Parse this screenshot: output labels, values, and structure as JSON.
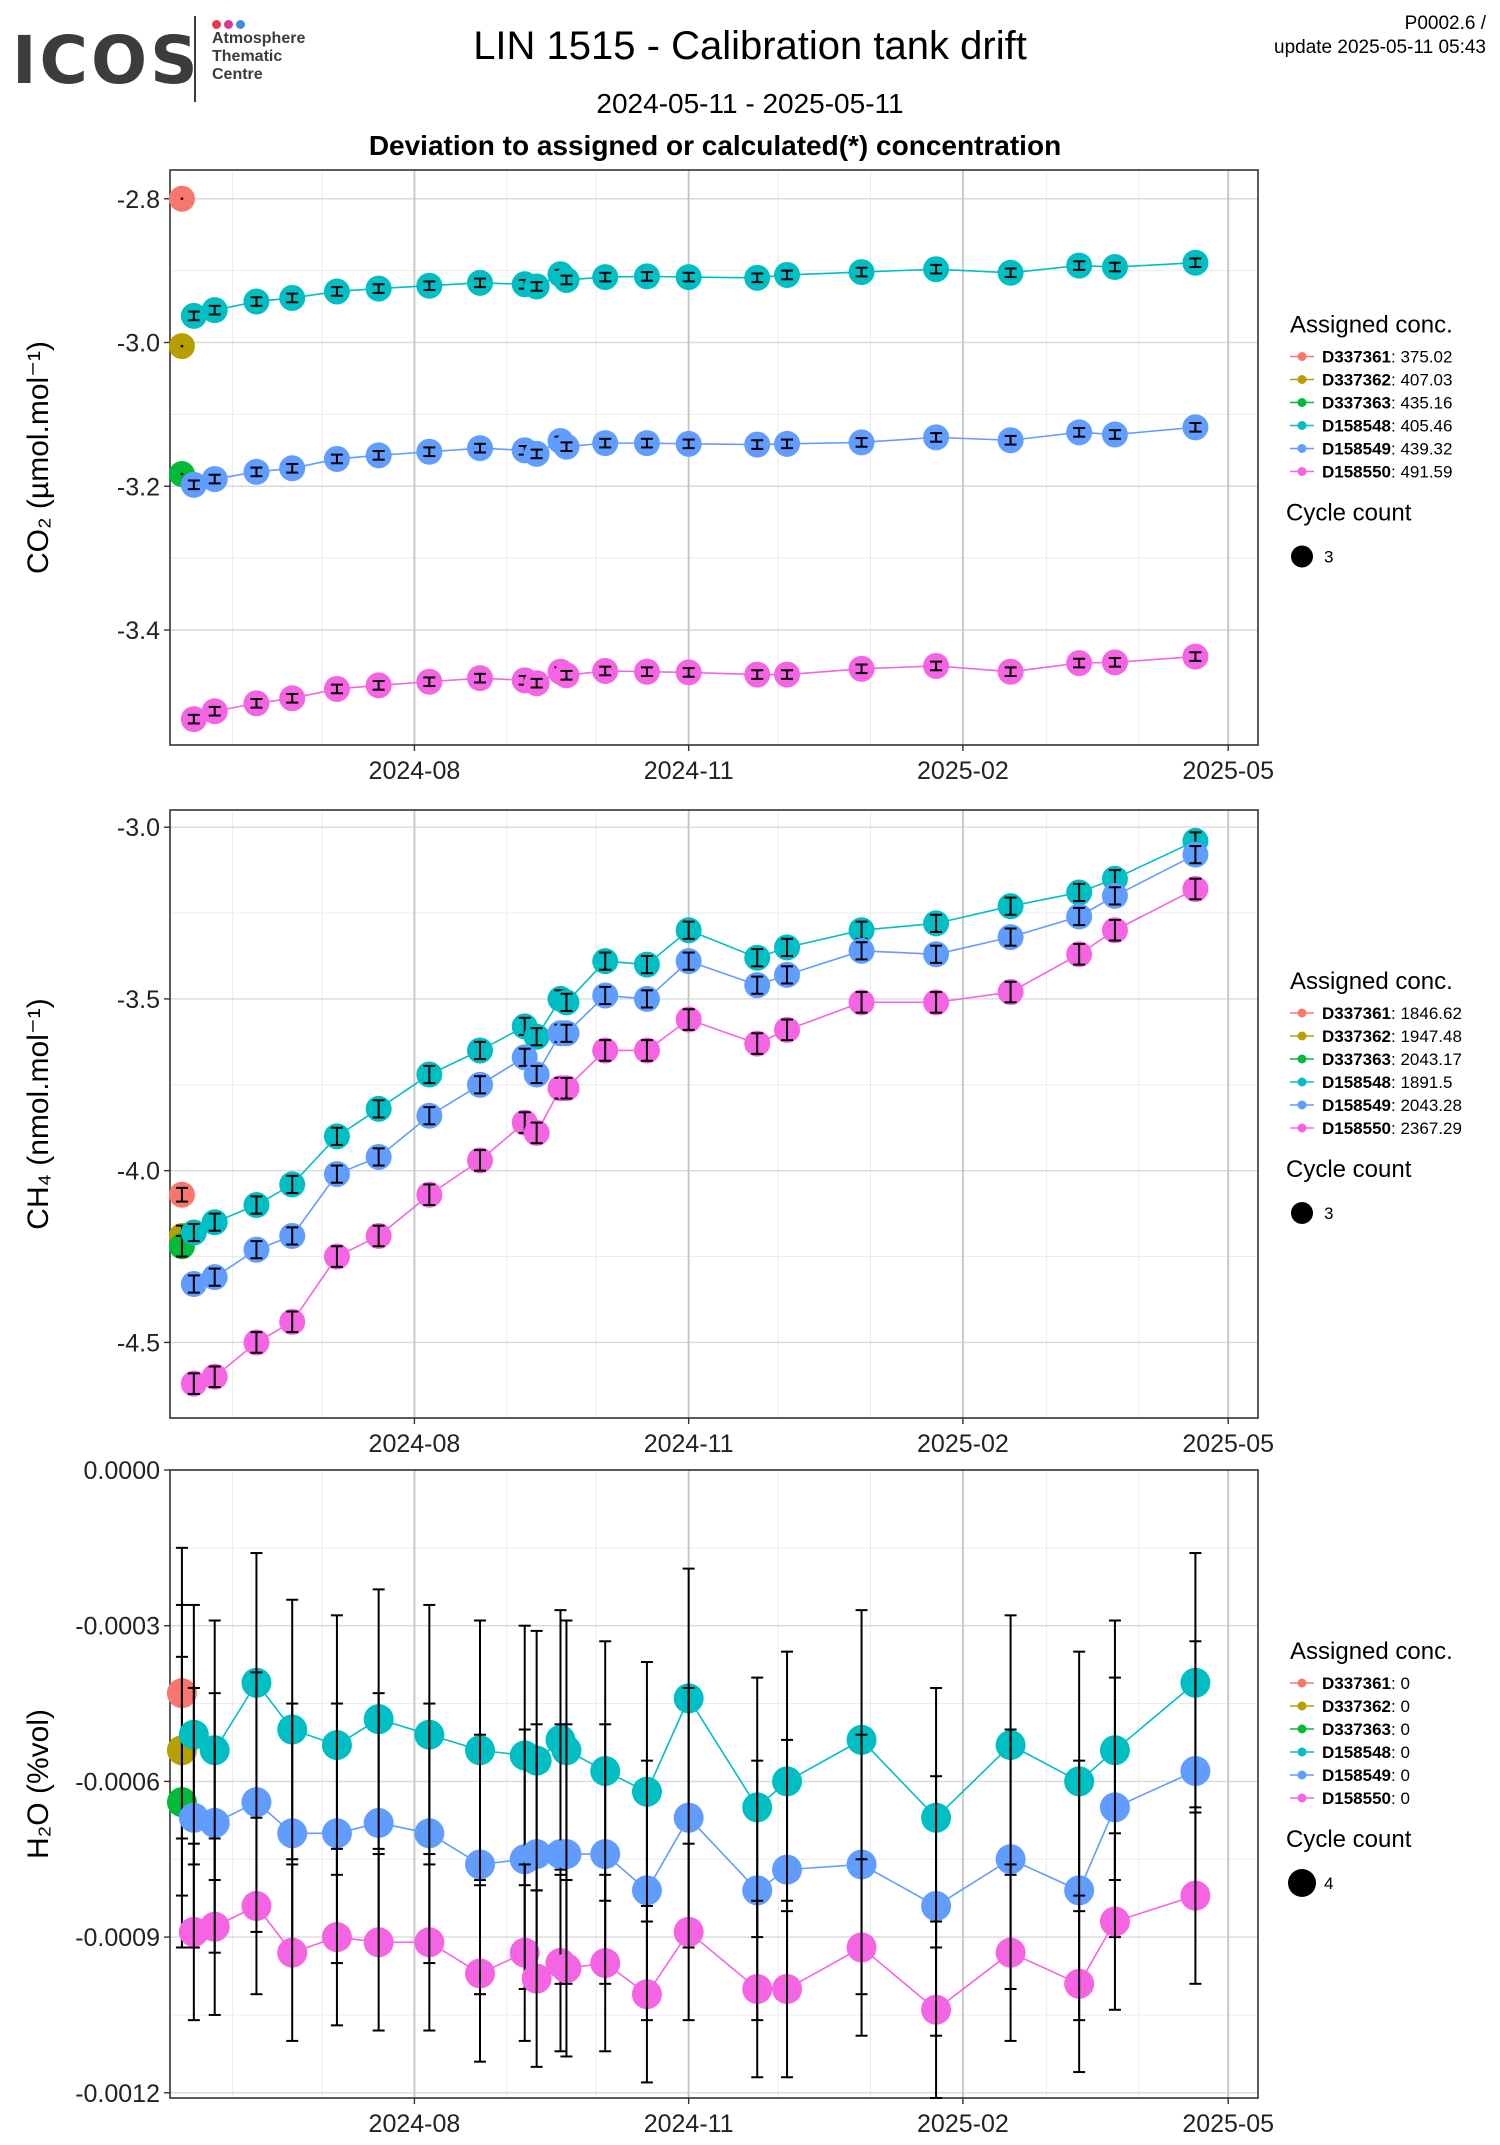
{
  "header": {
    "logo_text": "ICOS",
    "logo_sub": [
      "Atmosphere",
      "Thematic",
      "Centre"
    ],
    "logo_dot_colors": [
      "#e8384f",
      "#d63b94",
      "#3c8fd7"
    ],
    "title": "LIN 1515 - Calibration tank drift",
    "date_range": "2024-05-11 - 2025-05-11",
    "subtitle": "Deviation to assigned or calculated(*) concentration",
    "version": "P0002.6 /",
    "update": "update  2025-05-11 05:43"
  },
  "colors": {
    "D337361": "#F8766D",
    "D337362": "#B79F00",
    "D337363": "#00BA38",
    "D158548": "#00BFC4",
    "D158549": "#619CFF",
    "D158550": "#F564E3"
  },
  "chart_data": [
    {
      "type": "line",
      "ylabel": "CO₂ (µmol.mol⁻¹)",
      "ylim": [
        -3.56,
        -2.76
      ],
      "yticks": [
        -2.8,
        -3.0,
        -3.2,
        -3.4
      ],
      "ytick_labels": [
        "-2.8",
        "-3.0",
        "-3.2",
        "-3.4"
      ],
      "xlim": [
        "2024-05-11",
        "2025-05-11"
      ],
      "xticks": [
        "2024-08-01",
        "2024-11-01",
        "2025-02-01",
        "2025-05-01"
      ],
      "xtick_labels": [
        "2024-08",
        "2024-11",
        "2025-02",
        "2025-05"
      ],
      "grid": true,
      "legend": {
        "title": "Assigned conc.",
        "entries": [
          {
            "name": "D337361",
            "value": "375.02"
          },
          {
            "name": "D337362",
            "value": "407.03"
          },
          {
            "name": "D337363",
            "value": "435.16"
          },
          {
            "name": "D158548",
            "value": "405.46"
          },
          {
            "name": "D158549",
            "value": "439.32"
          },
          {
            "name": "D158550",
            "value": "491.59"
          }
        ],
        "size_title": "Cycle count",
        "size_label": "3"
      },
      "singles": [
        {
          "name": "D337361",
          "x": "2024-05-15",
          "y": -2.8,
          "err": 0
        },
        {
          "name": "D337362",
          "x": "2024-05-15",
          "y": -3.005,
          "err": 0
        },
        {
          "name": "D337363",
          "x": "2024-05-15",
          "y": -3.183,
          "err": 0
        }
      ],
      "series": [
        {
          "name": "D158548",
          "x": [
            "2024-05-19",
            "2024-05-26",
            "2024-06-09",
            "2024-06-21",
            "2024-07-06",
            "2024-07-20",
            "2024-08-06",
            "2024-08-23",
            "2024-09-07",
            "2024-09-11",
            "2024-09-19",
            "2024-09-21",
            "2024-10-04",
            "2024-10-18",
            "2024-11-01",
            "2024-11-24",
            "2024-12-04",
            "2024-12-29",
            "2025-01-23",
            "2025-02-17",
            "2025-03-12",
            "2025-03-24",
            "2025-04-20"
          ],
          "values": [
            -2.963,
            -2.955,
            -2.943,
            -2.938,
            -2.929,
            -2.925,
            -2.921,
            -2.917,
            -2.919,
            -2.922,
            -2.905,
            -2.913,
            -2.909,
            -2.908,
            -2.909,
            -2.91,
            -2.906,
            -2.902,
            -2.898,
            -2.903,
            -2.893,
            -2.895,
            -2.889
          ],
          "err": 0.006
        },
        {
          "name": "D158549",
          "x": [
            "2024-05-19",
            "2024-05-26",
            "2024-06-09",
            "2024-06-21",
            "2024-07-06",
            "2024-07-20",
            "2024-08-06",
            "2024-08-23",
            "2024-09-07",
            "2024-09-11",
            "2024-09-19",
            "2024-09-21",
            "2024-10-04",
            "2024-10-18",
            "2024-11-01",
            "2024-11-24",
            "2024-12-04",
            "2024-12-29",
            "2025-01-23",
            "2025-02-17",
            "2025-03-12",
            "2025-03-24",
            "2025-04-20"
          ],
          "values": [
            -3.198,
            -3.19,
            -3.18,
            -3.175,
            -3.162,
            -3.157,
            -3.152,
            -3.147,
            -3.15,
            -3.155,
            -3.137,
            -3.145,
            -3.14,
            -3.14,
            -3.141,
            -3.142,
            -3.141,
            -3.139,
            -3.132,
            -3.136,
            -3.125,
            -3.128,
            -3.118
          ],
          "err": 0.006
        },
        {
          "name": "D158550",
          "x": [
            "2024-05-19",
            "2024-05-26",
            "2024-06-09",
            "2024-06-21",
            "2024-07-06",
            "2024-07-20",
            "2024-08-06",
            "2024-08-23",
            "2024-09-07",
            "2024-09-11",
            "2024-09-19",
            "2024-09-21",
            "2024-10-04",
            "2024-10-18",
            "2024-11-01",
            "2024-11-24",
            "2024-12-04",
            "2024-12-29",
            "2025-01-23",
            "2025-02-17",
            "2025-03-12",
            "2025-03-24",
            "2025-04-20"
          ],
          "values": [
            -3.524,
            -3.513,
            -3.502,
            -3.495,
            -3.482,
            -3.477,
            -3.472,
            -3.467,
            -3.47,
            -3.474,
            -3.458,
            -3.463,
            -3.457,
            -3.458,
            -3.459,
            -3.462,
            -3.462,
            -3.454,
            -3.45,
            -3.458,
            -3.446,
            -3.445,
            -3.437
          ],
          "err": 0.006
        }
      ]
    },
    {
      "type": "line",
      "ylabel": "CH₄ (nmol.mol⁻¹)",
      "ylim": [
        -4.72,
        -2.95
      ],
      "yticks": [
        -3.0,
        -3.5,
        -4.0,
        -4.5
      ],
      "ytick_labels": [
        "-3.0",
        "-3.5",
        "-4.0",
        "-4.5"
      ],
      "xlim": [
        "2024-05-11",
        "2025-05-11"
      ],
      "xticks": [
        "2024-08-01",
        "2024-11-01",
        "2025-02-01",
        "2025-05-01"
      ],
      "xtick_labels": [
        "2024-08",
        "2024-11",
        "2025-02",
        "2025-05"
      ],
      "grid": true,
      "legend": {
        "title": "Assigned conc.",
        "entries": [
          {
            "name": "D337361",
            "value": "1846.62"
          },
          {
            "name": "D337362",
            "value": "1947.48"
          },
          {
            "name": "D337363",
            "value": "2043.17"
          },
          {
            "name": "D158548",
            "value": "1891.5"
          },
          {
            "name": "D158549",
            "value": "2043.28"
          },
          {
            "name": "D158550",
            "value": "2367.29"
          }
        ],
        "size_title": "Cycle count",
        "size_label": "3"
      },
      "singles": [
        {
          "name": "D337361",
          "x": "2024-05-15",
          "y": -4.07,
          "err": 0.02
        },
        {
          "name": "D337362",
          "x": "2024-05-15",
          "y": -4.19,
          "err": 0.03
        },
        {
          "name": "D337363",
          "x": "2024-05-15",
          "y": -4.22,
          "err": 0.03
        }
      ],
      "series": [
        {
          "name": "D158548",
          "x": [
            "2024-05-19",
            "2024-05-26",
            "2024-06-09",
            "2024-06-21",
            "2024-07-06",
            "2024-07-20",
            "2024-08-06",
            "2024-08-23",
            "2024-09-07",
            "2024-09-11",
            "2024-09-19",
            "2024-09-21",
            "2024-10-04",
            "2024-10-18",
            "2024-11-01",
            "2024-11-24",
            "2024-12-04",
            "2024-12-29",
            "2025-01-23",
            "2025-02-17",
            "2025-03-12",
            "2025-03-24",
            "2025-04-20"
          ],
          "values": [
            -4.18,
            -4.15,
            -4.1,
            -4.04,
            -3.9,
            -3.82,
            -3.72,
            -3.65,
            -3.58,
            -3.61,
            -3.5,
            -3.51,
            -3.39,
            -3.4,
            -3.3,
            -3.38,
            -3.35,
            -3.3,
            -3.28,
            -3.23,
            -3.19,
            -3.15,
            -3.04
          ],
          "err": 0.025
        },
        {
          "name": "D158549",
          "x": [
            "2024-05-19",
            "2024-05-26",
            "2024-06-09",
            "2024-06-21",
            "2024-07-06",
            "2024-07-20",
            "2024-08-06",
            "2024-08-23",
            "2024-09-07",
            "2024-09-11",
            "2024-09-19",
            "2024-09-21",
            "2024-10-04",
            "2024-10-18",
            "2024-11-01",
            "2024-11-24",
            "2024-12-04",
            "2024-12-29",
            "2025-01-23",
            "2025-02-17",
            "2025-03-12",
            "2025-03-24",
            "2025-04-20"
          ],
          "values": [
            -4.33,
            -4.31,
            -4.23,
            -4.19,
            -4.01,
            -3.96,
            -3.84,
            -3.75,
            -3.67,
            -3.72,
            -3.6,
            -3.6,
            -3.49,
            -3.5,
            -3.39,
            -3.46,
            -3.43,
            -3.36,
            -3.37,
            -3.32,
            -3.26,
            -3.2,
            -3.08
          ],
          "err": 0.025
        },
        {
          "name": "D158550",
          "x": [
            "2024-05-19",
            "2024-05-26",
            "2024-06-09",
            "2024-06-21",
            "2024-07-06",
            "2024-07-20",
            "2024-08-06",
            "2024-08-23",
            "2024-09-07",
            "2024-09-11",
            "2024-09-19",
            "2024-09-21",
            "2024-10-04",
            "2024-10-18",
            "2024-11-01",
            "2024-11-24",
            "2024-12-04",
            "2024-12-29",
            "2025-01-23",
            "2025-02-17",
            "2025-03-12",
            "2025-03-24",
            "2025-04-20"
          ],
          "values": [
            -4.62,
            -4.6,
            -4.5,
            -4.44,
            -4.25,
            -4.19,
            -4.07,
            -3.97,
            -3.86,
            -3.89,
            -3.76,
            -3.76,
            -3.65,
            -3.65,
            -3.56,
            -3.63,
            -3.59,
            -3.51,
            -3.51,
            -3.48,
            -3.37,
            -3.3,
            -3.18
          ],
          "err": 0.03
        }
      ]
    },
    {
      "type": "line",
      "ylabel": "H₂O (%vol)",
      "ylim": [
        -0.00121,
        0.0
      ],
      "yticks": [
        0.0,
        -0.0003,
        -0.0006,
        -0.0009,
        -0.0012
      ],
      "ytick_labels": [
        "0.0000",
        "-0.0003",
        "-0.0006",
        "-0.0009",
        "-0.0012"
      ],
      "xlim": [
        "2024-05-11",
        "2025-05-11"
      ],
      "xticks": [
        "2024-08-01",
        "2024-11-01",
        "2025-02-01",
        "2025-05-01"
      ],
      "xtick_labels": [
        "2024-08",
        "2024-11",
        "2025-02",
        "2025-05"
      ],
      "grid": true,
      "legend": {
        "title": "Assigned conc.",
        "entries": [
          {
            "name": "D337361",
            "value": "0"
          },
          {
            "name": "D337362",
            "value": "0"
          },
          {
            "name": "D337363",
            "value": "0"
          },
          {
            "name": "D158548",
            "value": "0"
          },
          {
            "name": "D158549",
            "value": "0"
          },
          {
            "name": "D158550",
            "value": "0"
          }
        ],
        "size_title": "Cycle count",
        "size_label": "4"
      },
      "singles": [
        {
          "name": "D337361",
          "x": "2024-05-15",
          "y": -0.00043,
          "err": 0.00028
        },
        {
          "name": "D337362",
          "x": "2024-05-15",
          "y": -0.00054,
          "err": 0.00028
        },
        {
          "name": "D337363",
          "x": "2024-05-15",
          "y": -0.00064,
          "err": 0.00028
        }
      ],
      "series": [
        {
          "name": "D158548",
          "x": [
            "2024-05-19",
            "2024-05-26",
            "2024-06-09",
            "2024-06-21",
            "2024-07-06",
            "2024-07-20",
            "2024-08-06",
            "2024-08-23",
            "2024-09-07",
            "2024-09-11",
            "2024-09-19",
            "2024-09-21",
            "2024-10-04",
            "2024-10-18",
            "2024-11-01",
            "2024-11-24",
            "2024-12-04",
            "2024-12-29",
            "2025-01-23",
            "2025-02-17",
            "2025-03-12",
            "2025-03-24",
            "2025-04-20"
          ],
          "values": [
            -0.00051,
            -0.00054,
            -0.00041,
            -0.0005,
            -0.00053,
            -0.00048,
            -0.00051,
            -0.00054,
            -0.00055,
            -0.00056,
            -0.00052,
            -0.00054,
            -0.00058,
            -0.00062,
            -0.00044,
            -0.00065,
            -0.0006,
            -0.00052,
            -0.00067,
            -0.00053,
            -0.0006,
            -0.00054,
            -0.00041
          ],
          "err": 0.00025
        },
        {
          "name": "D158549",
          "x": [
            "2024-05-19",
            "2024-05-26",
            "2024-06-09",
            "2024-06-21",
            "2024-07-06",
            "2024-07-20",
            "2024-08-06",
            "2024-08-23",
            "2024-09-07",
            "2024-09-11",
            "2024-09-19",
            "2024-09-21",
            "2024-10-04",
            "2024-10-18",
            "2024-11-01",
            "2024-11-24",
            "2024-12-04",
            "2024-12-29",
            "2025-01-23",
            "2025-02-17",
            "2025-03-12",
            "2025-03-24",
            "2025-04-20"
          ],
          "values": [
            -0.00067,
            -0.00068,
            -0.00064,
            -0.0007,
            -0.0007,
            -0.00068,
            -0.0007,
            -0.00076,
            -0.00075,
            -0.00074,
            -0.00074,
            -0.00074,
            -0.00074,
            -0.00081,
            -0.00067,
            -0.00081,
            -0.00077,
            -0.00076,
            -0.00084,
            -0.00075,
            -0.00081,
            -0.00065,
            -0.00058
          ],
          "err": 0.00025
        },
        {
          "name": "D158550",
          "x": [
            "2024-05-19",
            "2024-05-26",
            "2024-06-09",
            "2024-06-21",
            "2024-07-06",
            "2024-07-20",
            "2024-08-06",
            "2024-08-23",
            "2024-09-07",
            "2024-09-11",
            "2024-09-19",
            "2024-09-21",
            "2024-10-04",
            "2024-10-18",
            "2024-11-01",
            "2024-11-24",
            "2024-12-04",
            "2024-12-29",
            "2025-01-23",
            "2025-02-17",
            "2025-03-12",
            "2025-03-24",
            "2025-04-20"
          ],
          "values": [
            -0.00089,
            -0.00088,
            -0.00084,
            -0.00093,
            -0.0009,
            -0.00091,
            -0.00091,
            -0.00097,
            -0.00093,
            -0.00098,
            -0.00095,
            -0.00096,
            -0.00095,
            -0.00101,
            -0.00089,
            -0.001,
            -0.001,
            -0.00092,
            -0.00104,
            -0.00093,
            -0.00099,
            -0.00087,
            -0.00082
          ],
          "err": 0.00017
        }
      ]
    }
  ]
}
